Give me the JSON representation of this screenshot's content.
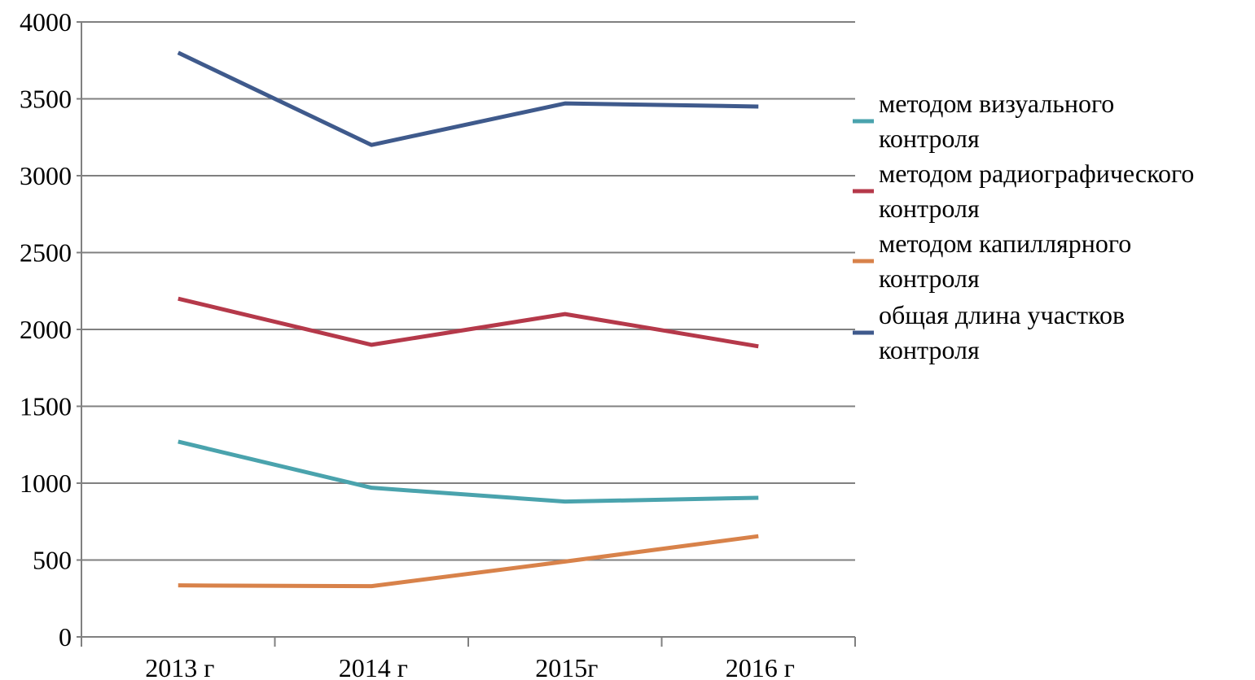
{
  "chart_data": {
    "type": "line",
    "title": "",
    "xlabel": "",
    "ylabel": "",
    "categories": [
      "2013 г",
      "2014 г",
      "2015г",
      "2016 г"
    ],
    "ylim": [
      0,
      4000
    ],
    "yticks": [
      0,
      500,
      1000,
      1500,
      2000,
      2500,
      3000,
      3500,
      4000
    ],
    "grid": true,
    "legend_position": "right",
    "series": [
      {
        "name": "методом визуального контроля",
        "legend_lines": [
          "методом визуального",
          "контроля"
        ],
        "color": "#4aa3ad",
        "values": [
          1270,
          970,
          880,
          905
        ]
      },
      {
        "name": "методом радиографического контроля",
        "legend_lines": [
          "методом радиографического",
          "контроля"
        ],
        "color": "#b5394a",
        "values": [
          2200,
          1900,
          2100,
          1890
        ]
      },
      {
        "name": "методом капиллярного контроля",
        "legend_lines": [
          "методом капиллярного",
          "контроля"
        ],
        "color": "#d8824a",
        "values": [
          335,
          330,
          490,
          655
        ]
      },
      {
        "name": "общая длина участков контроля",
        "legend_lines": [
          "общая длина участков",
          "контроля"
        ],
        "color": "#3f5a8c",
        "values": [
          3800,
          3200,
          3470,
          3450
        ]
      }
    ]
  }
}
